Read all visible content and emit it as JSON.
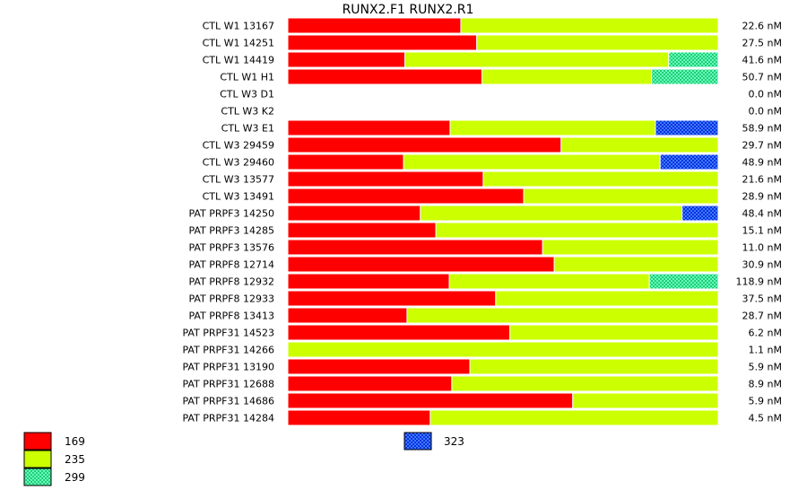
{
  "chart_data": {
    "type": "bar",
    "orientation": "horizontal",
    "stacked": "proportional",
    "title": "RUNX2.F1  RUNX2.R1",
    "unit": "nM",
    "legend": [
      {
        "key": "169",
        "label": "169",
        "color": "#ff0000",
        "pattern": "solid"
      },
      {
        "key": "235",
        "label": "235",
        "color": "#ccff00",
        "pattern": "solid"
      },
      {
        "key": "299",
        "label": "299",
        "color": "#33ee99",
        "pattern": "checker"
      },
      {
        "key": "323",
        "label": "323",
        "color": "#1144ff",
        "pattern": "checker"
      }
    ],
    "categories": [
      "CTL W1 13167",
      "CTL W1 14251",
      "CTL W1 14419",
      "CTL W1 H1",
      "CTL W3 D1",
      "CTL W3 K2",
      "CTL W3 E1",
      "CTL W3 29459",
      "CTL W3 29460",
      "CTL W3 13577",
      "CTL W3 13491",
      "PAT PRPF3 14250",
      "PAT PRPF3 14285",
      "PAT PRPF3 13576",
      "PAT PRPF8 12714",
      "PAT PRPF8 12932",
      "PAT PRPF8 12933",
      "PAT PRPF8 13413",
      "PAT PRPF31 14523",
      "PAT PRPF31 14266",
      "PAT PRPF31 13190",
      "PAT PRPF31 12688",
      "PAT PRPF31 14686",
      "PAT PRPF31 14284"
    ],
    "totals": [
      "22.6 nM",
      "27.5 nM",
      "41.6 nM",
      "50.7 nM",
      "0.0 nM",
      "0.0 nM",
      "58.9 nM",
      "29.7 nM",
      "48.9 nM",
      "21.6 nM",
      "28.9 nM",
      "48.4 nM",
      "15.1 nM",
      "11.0 nM",
      "30.9 nM",
      "118.9 nM",
      "37.5 nM",
      "28.7 nM",
      "6.2 nM",
      "1.1 nM",
      "5.9 nM",
      "8.9 nM",
      "5.9 nM",
      "4.5 nM"
    ],
    "series": [
      {
        "key": "169",
        "values": [
          0.402,
          0.439,
          0.272,
          0.451,
          0,
          0,
          0.377,
          0.635,
          0.269,
          0.454,
          0.548,
          0.308,
          0.344,
          0.592,
          0.619,
          0.375,
          0.483,
          0.277,
          0.516,
          0,
          0.423,
          0.381,
          0.662,
          0.331
        ]
      },
      {
        "key": "235",
        "values": [
          0.598,
          0.561,
          0.613,
          0.394,
          0,
          0,
          0.477,
          0.365,
          0.596,
          0.546,
          0.452,
          0.608,
          0.656,
          0.408,
          0.381,
          0.465,
          0.517,
          0.723,
          0.484,
          1.0,
          0.577,
          0.619,
          0.338,
          0.669
        ]
      },
      {
        "key": "299",
        "values": [
          0,
          0,
          0.115,
          0.155,
          0,
          0,
          0,
          0,
          0,
          0,
          0,
          0,
          0,
          0,
          0,
          0.16,
          0,
          0,
          0,
          0,
          0,
          0,
          0,
          0
        ]
      },
      {
        "key": "323",
        "values": [
          0,
          0,
          0,
          0,
          0,
          0,
          0.146,
          0,
          0.135,
          0,
          0,
          0.084,
          0,
          0,
          0,
          0,
          0,
          0,
          0,
          0,
          0,
          0,
          0,
          0
        ]
      }
    ],
    "xlim": [
      0,
      1
    ],
    "grid": false,
    "legend_position": "bottom-left"
  }
}
